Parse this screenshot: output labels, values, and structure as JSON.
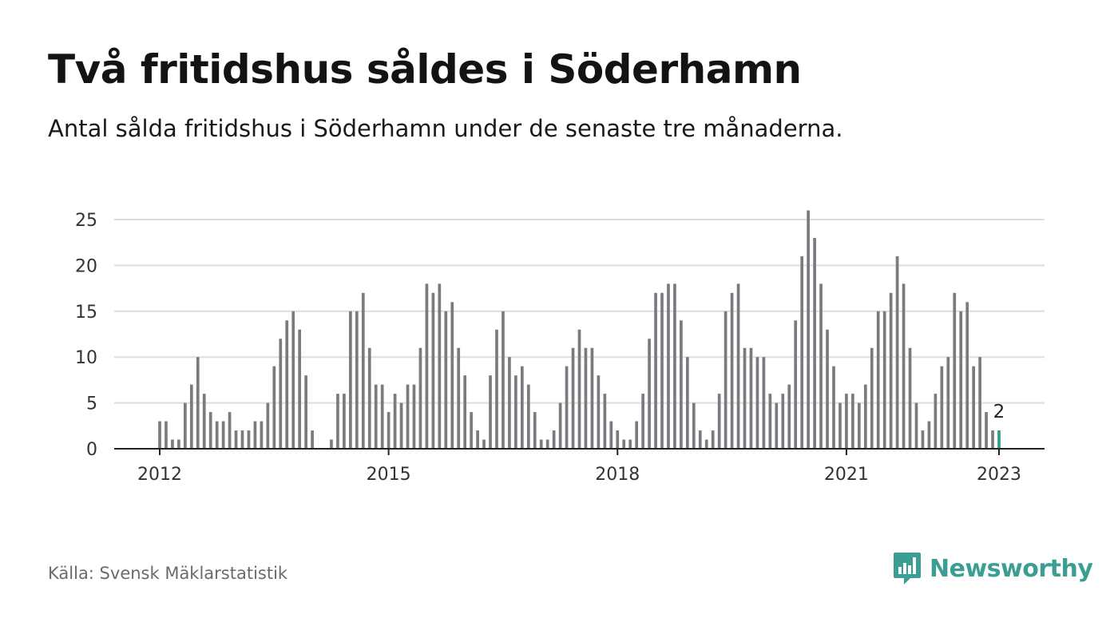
{
  "header": {
    "title": "Två fritidshus såldes i Söderhamn",
    "subtitle": "Antal sålda fritidshus i Söderhamn under de senaste tre månaderna."
  },
  "footer": {
    "source": "Källa: Svensk Mäklarstatistik",
    "brand": "Newsworthy",
    "brand_icon": "newsworthy-logo-icon"
  },
  "colors": {
    "bar": "#7b7b7f",
    "highlight": "#2a9d8f",
    "grid": "#dedede",
    "axis": "#222222",
    "brand": "#3a9e92"
  },
  "chart_data": {
    "type": "bar",
    "title": "Två fritidshus såldes i Söderhamn",
    "subtitle": "Antal sålda fritidshus i Söderhamn under de senaste tre månaderna.",
    "xlabel": "",
    "ylabel": "",
    "x_start": "2012-01",
    "x_end": "2023-01",
    "ylim": [
      0,
      26
    ],
    "yticks": [
      0,
      5,
      10,
      15,
      20,
      25
    ],
    "xticks": [
      {
        "label": "2012",
        "month": "2012-01"
      },
      {
        "label": "2015",
        "month": "2015-01"
      },
      {
        "label": "2018",
        "month": "2018-01"
      },
      {
        "label": "2021",
        "month": "2021-01"
      },
      {
        "label": "2023",
        "month": "2023-01"
      }
    ],
    "grid": true,
    "legend": "none",
    "highlight": {
      "month": "2023-01",
      "value": 2,
      "label": "2"
    },
    "values": [
      3,
      3,
      1,
      1,
      5,
      7,
      10,
      6,
      4,
      3,
      3,
      4,
      2,
      2,
      2,
      3,
      3,
      5,
      9,
      12,
      14,
      15,
      13,
      8,
      2,
      0,
      0,
      1,
      6,
      6,
      15,
      15,
      17,
      11,
      7,
      7,
      4,
      6,
      5,
      7,
      7,
      11,
      18,
      17,
      18,
      15,
      16,
      11,
      8,
      4,
      2,
      1,
      8,
      13,
      15,
      10,
      8,
      9,
      7,
      4,
      1,
      1,
      2,
      5,
      9,
      11,
      13,
      11,
      11,
      8,
      6,
      3,
      2,
      1,
      1,
      3,
      6,
      12,
      17,
      17,
      18,
      18,
      14,
      10,
      5,
      2,
      1,
      2,
      6,
      15,
      17,
      18,
      11,
      11,
      10,
      10,
      6,
      5,
      6,
      7,
      14,
      21,
      26,
      23,
      18,
      13,
      9,
      5,
      6,
      6,
      5,
      7,
      11,
      15,
      15,
      17,
      21,
      18,
      11,
      5,
      2,
      3,
      6,
      9,
      10,
      17,
      15,
      16,
      9,
      10,
      4,
      2,
      2
    ]
  }
}
